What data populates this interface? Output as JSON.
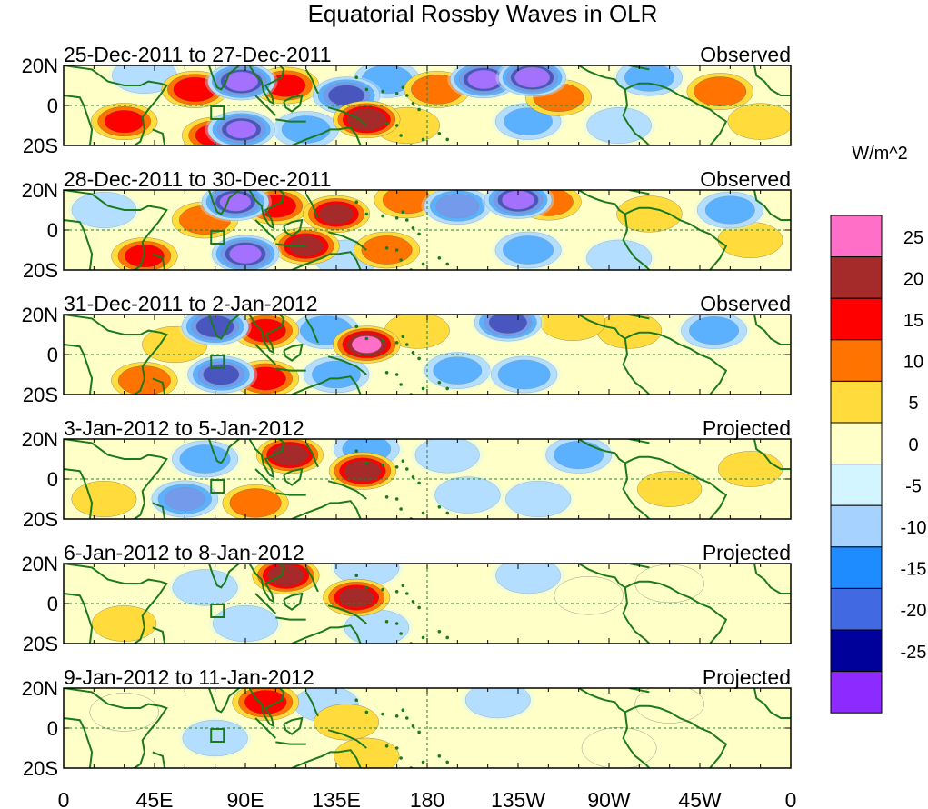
{
  "chart_data": {
    "type": "heatmap",
    "title": "Equatorial Rossby Waves in OLR",
    "units_label": "W/m^2",
    "lat_ticks": [
      "20N",
      "0",
      "20S"
    ],
    "lon_ticks": [
      "0",
      "45E",
      "90E",
      "135E",
      "180",
      "135W",
      "90W",
      "45W",
      "0"
    ],
    "lon_range": [
      0,
      360
    ],
    "lat_range": [
      -20,
      20
    ],
    "colorbar": {
      "levels": [
        25,
        20,
        15,
        10,
        5,
        0,
        -5,
        -10,
        -15,
        -20,
        -25
      ],
      "colors": [
        "#ff6ec7",
        "#a52a2a",
        "#ff0000",
        "#ff7400",
        "#ffdc3c",
        "#ffffc8",
        "#d2f5ff",
        "#a5d2ff",
        "#1e8cff",
        "#4169e1",
        "#00009a",
        "#8c2aff"
      ]
    },
    "panels": [
      {
        "period": "25-Dec-2011 to 27-Dec-2011",
        "kind": "Observed",
        "anomalies": [
          {
            "lon": 88,
            "lat": 12,
            "v": -28
          },
          {
            "lon": 88,
            "lat": -12,
            "v": -25
          },
          {
            "lon": 150,
            "lat": -7,
            "v": 24
          },
          {
            "lon": 140,
            "lat": 5,
            "v": -22
          },
          {
            "lon": 232,
            "lat": 14,
            "v": -30
          },
          {
            "lon": 208,
            "lat": 13,
            "v": -27
          },
          {
            "lon": 65,
            "lat": 8,
            "v": 18
          },
          {
            "lon": 30,
            "lat": -8,
            "v": 15
          },
          {
            "lon": 75,
            "lat": -15,
            "v": 15
          },
          {
            "lon": 110,
            "lat": 10,
            "v": 15
          },
          {
            "lon": 185,
            "lat": 8,
            "v": 14
          },
          {
            "lon": 245,
            "lat": 4,
            "v": 12
          },
          {
            "lon": 325,
            "lat": 7,
            "v": 14
          },
          {
            "lon": 345,
            "lat": -8,
            "v": 9
          },
          {
            "lon": 160,
            "lat": 13,
            "v": -12
          },
          {
            "lon": 170,
            "lat": -10,
            "v": 9
          },
          {
            "lon": 230,
            "lat": -8,
            "v": -10
          },
          {
            "lon": 290,
            "lat": 14,
            "v": -11
          },
          {
            "lon": 275,
            "lat": -10,
            "v": -6
          },
          {
            "lon": 120,
            "lat": -12,
            "v": -10
          },
          {
            "lon": 40,
            "lat": 15,
            "v": -6
          }
        ]
      },
      {
        "period": "28-Dec-2011 to 30-Dec-2011",
        "kind": "Observed",
        "anomalies": [
          {
            "lon": 85,
            "lat": 14,
            "v": -26
          },
          {
            "lon": 90,
            "lat": -12,
            "v": -27
          },
          {
            "lon": 135,
            "lat": 8,
            "v": 20
          },
          {
            "lon": 120,
            "lat": -8,
            "v": 20
          },
          {
            "lon": 225,
            "lat": 15,
            "v": -27
          },
          {
            "lon": 195,
            "lat": 12,
            "v": -18
          },
          {
            "lon": 40,
            "lat": -13,
            "v": 15
          },
          {
            "lon": 70,
            "lat": 5,
            "v": 13
          },
          {
            "lon": 105,
            "lat": 12,
            "v": 16
          },
          {
            "lon": 160,
            "lat": -10,
            "v": 12
          },
          {
            "lon": 240,
            "lat": 14,
            "v": 11
          },
          {
            "lon": 290,
            "lat": 8,
            "v": 9
          },
          {
            "lon": 330,
            "lat": 10,
            "v": -11
          },
          {
            "lon": 230,
            "lat": -10,
            "v": -12
          },
          {
            "lon": 275,
            "lat": -14,
            "v": -8
          },
          {
            "lon": 340,
            "lat": -5,
            "v": 7
          },
          {
            "lon": 170,
            "lat": 15,
            "v": 10
          },
          {
            "lon": 140,
            "lat": -14,
            "v": -8
          },
          {
            "lon": 20,
            "lat": 10,
            "v": -6
          }
        ]
      },
      {
        "period": "31-Dec-2011 to 2-Jan-2012",
        "kind": "Observed",
        "anomalies": [
          {
            "lon": 75,
            "lat": 14,
            "v": -24
          },
          {
            "lon": 78,
            "lat": -10,
            "v": -22
          },
          {
            "lon": 150,
            "lat": 5,
            "v": 25
          },
          {
            "lon": 220,
            "lat": 16,
            "v": -24
          },
          {
            "lon": 100,
            "lat": 12,
            "v": 16
          },
          {
            "lon": 100,
            "lat": -12,
            "v": 16
          },
          {
            "lon": 130,
            "lat": 12,
            "v": -14
          },
          {
            "lon": 135,
            "lat": -10,
            "v": -10
          },
          {
            "lon": 40,
            "lat": -13,
            "v": 14
          },
          {
            "lon": 195,
            "lat": -8,
            "v": -10
          },
          {
            "lon": 228,
            "lat": -10,
            "v": -14
          },
          {
            "lon": 252,
            "lat": 16,
            "v": 9
          },
          {
            "lon": 322,
            "lat": 12,
            "v": -11
          },
          {
            "lon": 55,
            "lat": 5,
            "v": 8
          },
          {
            "lon": 280,
            "lat": 12,
            "v": 7
          },
          {
            "lon": 175,
            "lat": 12,
            "v": 7
          }
        ]
      },
      {
        "period": "3-Jan-2012 to 5-Jan-2012",
        "kind": "Projected",
        "anomalies": [
          {
            "lon": 112,
            "lat": 12,
            "v": 22
          },
          {
            "lon": 148,
            "lat": 4,
            "v": 22
          },
          {
            "lon": 60,
            "lat": -10,
            "v": -16
          },
          {
            "lon": 70,
            "lat": 10,
            "v": -12
          },
          {
            "lon": 150,
            "lat": 15,
            "v": -10
          },
          {
            "lon": 95,
            "lat": -12,
            "v": 13
          },
          {
            "lon": 200,
            "lat": -8,
            "v": -9
          },
          {
            "lon": 255,
            "lat": 12,
            "v": -11
          },
          {
            "lon": 235,
            "lat": -10,
            "v": -8
          },
          {
            "lon": 300,
            "lat": -5,
            "v": 5
          },
          {
            "lon": 20,
            "lat": -10,
            "v": 7
          },
          {
            "lon": 190,
            "lat": 12,
            "v": -5
          },
          {
            "lon": 340,
            "lat": 5,
            "v": 5
          }
        ]
      },
      {
        "period": "6-Jan-2012 to 8-Jan-2012",
        "kind": "Projected",
        "anomalies": [
          {
            "lon": 110,
            "lat": 14,
            "v": 22
          },
          {
            "lon": 145,
            "lat": 3,
            "v": 20
          },
          {
            "lon": 70,
            "lat": 8,
            "v": -8
          },
          {
            "lon": 90,
            "lat": -10,
            "v": -8
          },
          {
            "lon": 150,
            "lat": 18,
            "v": -8
          },
          {
            "lon": 155,
            "lat": -12,
            "v": -6
          },
          {
            "lon": 230,
            "lat": 14,
            "v": -7
          },
          {
            "lon": 30,
            "lat": -10,
            "v": 5
          },
          {
            "lon": 260,
            "lat": 4,
            "v": 4
          },
          {
            "lon": 300,
            "lat": 10,
            "v": 4
          }
        ]
      },
      {
        "period": "9-Jan-2012 to 11-Jan-2012",
        "kind": "Projected",
        "anomalies": [
          {
            "lon": 100,
            "lat": 13,
            "v": 17
          },
          {
            "lon": 140,
            "lat": 3,
            "v": 7
          },
          {
            "lon": 150,
            "lat": -14,
            "v": 8
          },
          {
            "lon": 75,
            "lat": -5,
            "v": -8
          },
          {
            "lon": 130,
            "lat": 12,
            "v": -6
          },
          {
            "lon": 215,
            "lat": 14,
            "v": -7
          },
          {
            "lon": 30,
            "lat": 8,
            "v": 4
          },
          {
            "lon": 300,
            "lat": 12,
            "v": 4
          },
          {
            "lon": 275,
            "lat": -10,
            "v": 3
          }
        ]
      }
    ]
  }
}
